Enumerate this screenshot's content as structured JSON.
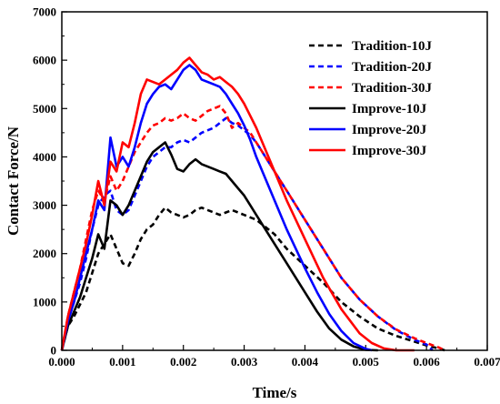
{
  "chart_data": {
    "type": "line",
    "xlabel": "Time/s",
    "ylabel": "Contact Force/N",
    "xlim": [
      0,
      0.007
    ],
    "ylim": [
      0,
      7000
    ],
    "xticks": [
      "0.000",
      "0.001",
      "0.002",
      "0.003",
      "0.004",
      "0.005",
      "0.006",
      "0.007"
    ],
    "yticks": [
      "0",
      "1000",
      "2000",
      "3000",
      "4000",
      "5000",
      "6000",
      "7000"
    ],
    "grid": false,
    "legend_position": "top-right",
    "series": [
      {
        "name": "Tradition-10J",
        "color": "#000000",
        "dash": "dashed",
        "points": [
          [
            0,
            0
          ],
          [
            0.0001,
            500
          ],
          [
            0.0002,
            700
          ],
          [
            0.0003,
            950
          ],
          [
            0.0004,
            1200
          ],
          [
            0.0005,
            1600
          ],
          [
            0.0006,
            2000
          ],
          [
            0.0007,
            2200
          ],
          [
            0.0008,
            2400
          ],
          [
            0.0009,
            2100
          ],
          [
            0.001,
            1800
          ],
          [
            0.0011,
            1750
          ],
          [
            0.0012,
            2000
          ],
          [
            0.0013,
            2300
          ],
          [
            0.0014,
            2500
          ],
          [
            0.0015,
            2600
          ],
          [
            0.0016,
            2800
          ],
          [
            0.0017,
            2950
          ],
          [
            0.0018,
            2850
          ],
          [
            0.0019,
            2800
          ],
          [
            0.002,
            2750
          ],
          [
            0.0021,
            2800
          ],
          [
            0.0022,
            2900
          ],
          [
            0.0023,
            2950
          ],
          [
            0.0024,
            2900
          ],
          [
            0.0025,
            2850
          ],
          [
            0.0026,
            2800
          ],
          [
            0.0027,
            2850
          ],
          [
            0.0028,
            2900
          ],
          [
            0.0029,
            2850
          ],
          [
            0.003,
            2800
          ],
          [
            0.0031,
            2750
          ],
          [
            0.0032,
            2700
          ],
          [
            0.0033,
            2600
          ],
          [
            0.0035,
            2400
          ],
          [
            0.0037,
            2100
          ],
          [
            0.004,
            1750
          ],
          [
            0.0043,
            1400
          ],
          [
            0.0046,
            1000
          ],
          [
            0.0049,
            700
          ],
          [
            0.0052,
            450
          ],
          [
            0.0055,
            300
          ],
          [
            0.0058,
            180
          ],
          [
            0.006,
            100
          ],
          [
            0.0062,
            40
          ],
          [
            0.0063,
            0
          ]
        ]
      },
      {
        "name": "Tradition-20J",
        "color": "#0000ff",
        "dash": "dashed",
        "points": [
          [
            0,
            0
          ],
          [
            0.0001,
            600
          ],
          [
            0.0002,
            1000
          ],
          [
            0.0003,
            1400
          ],
          [
            0.0004,
            1900
          ],
          [
            0.0005,
            2500
          ],
          [
            0.0006,
            3000
          ],
          [
            0.0007,
            3200
          ],
          [
            0.0008,
            3300
          ],
          [
            0.0009,
            2900
          ],
          [
            0.001,
            2800
          ],
          [
            0.0011,
            2900
          ],
          [
            0.0012,
            3200
          ],
          [
            0.0013,
            3500
          ],
          [
            0.0014,
            3800
          ],
          [
            0.0015,
            4000
          ],
          [
            0.0016,
            4100
          ],
          [
            0.0017,
            4200
          ],
          [
            0.0018,
            4200
          ],
          [
            0.0019,
            4300
          ],
          [
            0.002,
            4350
          ],
          [
            0.0021,
            4300
          ],
          [
            0.0022,
            4400
          ],
          [
            0.0023,
            4500
          ],
          [
            0.0024,
            4550
          ],
          [
            0.0025,
            4600
          ],
          [
            0.0026,
            4700
          ],
          [
            0.0027,
            4800
          ],
          [
            0.0028,
            4700
          ],
          [
            0.0029,
            4650
          ],
          [
            0.003,
            4550
          ],
          [
            0.0031,
            4450
          ],
          [
            0.0032,
            4300
          ],
          [
            0.0033,
            4100
          ],
          [
            0.0035,
            3700
          ],
          [
            0.0037,
            3300
          ],
          [
            0.004,
            2700
          ],
          [
            0.0043,
            2100
          ],
          [
            0.0046,
            1500
          ],
          [
            0.0049,
            1050
          ],
          [
            0.0052,
            700
          ],
          [
            0.0055,
            420
          ],
          [
            0.0058,
            220
          ],
          [
            0.006,
            120
          ],
          [
            0.0061,
            0
          ]
        ]
      },
      {
        "name": "Tradition-30J",
        "color": "#ff0000",
        "dash": "dashed",
        "points": [
          [
            0,
            0
          ],
          [
            0.0001,
            700
          ],
          [
            0.0002,
            1200
          ],
          [
            0.0003,
            1700
          ],
          [
            0.0004,
            2300
          ],
          [
            0.0005,
            2900
          ],
          [
            0.0006,
            3300
          ],
          [
            0.0007,
            3100
          ],
          [
            0.0008,
            3600
          ],
          [
            0.0009,
            3300
          ],
          [
            0.001,
            3500
          ],
          [
            0.0011,
            3800
          ],
          [
            0.0012,
            4100
          ],
          [
            0.0013,
            4300
          ],
          [
            0.0014,
            4500
          ],
          [
            0.0015,
            4650
          ],
          [
            0.0016,
            4700
          ],
          [
            0.0017,
            4800
          ],
          [
            0.0018,
            4750
          ],
          [
            0.0019,
            4800
          ],
          [
            0.002,
            4900
          ],
          [
            0.0021,
            4800
          ],
          [
            0.0022,
            4750
          ],
          [
            0.0023,
            4850
          ],
          [
            0.0024,
            4950
          ],
          [
            0.0025,
            5000
          ],
          [
            0.0026,
            5050
          ],
          [
            0.0027,
            4900
          ],
          [
            0.0028,
            4600
          ],
          [
            0.0029,
            4700
          ],
          [
            0.003,
            4600
          ],
          [
            0.0031,
            4500
          ],
          [
            0.0032,
            4300
          ],
          [
            0.0033,
            4100
          ],
          [
            0.0035,
            3700
          ],
          [
            0.0037,
            3300
          ],
          [
            0.004,
            2700
          ],
          [
            0.0043,
            2100
          ],
          [
            0.0046,
            1500
          ],
          [
            0.0049,
            1050
          ],
          [
            0.0052,
            700
          ],
          [
            0.0055,
            430
          ],
          [
            0.0058,
            250
          ],
          [
            0.006,
            150
          ],
          [
            0.0062,
            60
          ],
          [
            0.0063,
            0
          ]
        ]
      },
      {
        "name": "Improve-10J",
        "color": "#000000",
        "dash": "solid",
        "points": [
          [
            0,
            0
          ],
          [
            0.0001,
            500
          ],
          [
            0.0002,
            800
          ],
          [
            0.0003,
            1100
          ],
          [
            0.0004,
            1500
          ],
          [
            0.0005,
            1900
          ],
          [
            0.0006,
            2400
          ],
          [
            0.0007,
            2100
          ],
          [
            0.0008,
            3100
          ],
          [
            0.0009,
            3000
          ],
          [
            0.001,
            2800
          ],
          [
            0.0011,
            3000
          ],
          [
            0.0012,
            3300
          ],
          [
            0.0013,
            3600
          ],
          [
            0.0014,
            3900
          ],
          [
            0.0015,
            4100
          ],
          [
            0.0016,
            4200
          ],
          [
            0.0017,
            4300
          ],
          [
            0.0018,
            4050
          ],
          [
            0.0019,
            3750
          ],
          [
            0.002,
            3700
          ],
          [
            0.0021,
            3850
          ],
          [
            0.0022,
            3950
          ],
          [
            0.0023,
            3850
          ],
          [
            0.0024,
            3800
          ],
          [
            0.0025,
            3750
          ],
          [
            0.0026,
            3700
          ],
          [
            0.0027,
            3650
          ],
          [
            0.0028,
            3500
          ],
          [
            0.0029,
            3350
          ],
          [
            0.003,
            3200
          ],
          [
            0.0031,
            3000
          ],
          [
            0.0032,
            2800
          ],
          [
            0.0033,
            2600
          ],
          [
            0.0035,
            2200
          ],
          [
            0.0037,
            1800
          ],
          [
            0.004,
            1200
          ],
          [
            0.0042,
            800
          ],
          [
            0.0044,
            450
          ],
          [
            0.0046,
            220
          ],
          [
            0.0048,
            80
          ],
          [
            0.005,
            10
          ],
          [
            0.0052,
            0
          ]
        ]
      },
      {
        "name": "Improve-20J",
        "color": "#0000ff",
        "dash": "solid",
        "points": [
          [
            0,
            0
          ],
          [
            0.0001,
            600
          ],
          [
            0.0002,
            1000
          ],
          [
            0.0003,
            1500
          ],
          [
            0.0004,
            2000
          ],
          [
            0.0005,
            2500
          ],
          [
            0.0006,
            3100
          ],
          [
            0.0007,
            2900
          ],
          [
            0.0008,
            4400
          ],
          [
            0.0009,
            3800
          ],
          [
            0.001,
            4000
          ],
          [
            0.0011,
            3800
          ],
          [
            0.0012,
            4200
          ],
          [
            0.0013,
            4700
          ],
          [
            0.0014,
            5100
          ],
          [
            0.0015,
            5300
          ],
          [
            0.0016,
            5450
          ],
          [
            0.0017,
            5500
          ],
          [
            0.0018,
            5400
          ],
          [
            0.0019,
            5600
          ],
          [
            0.002,
            5800
          ],
          [
            0.0021,
            5900
          ],
          [
            0.0022,
            5800
          ],
          [
            0.0023,
            5600
          ],
          [
            0.0024,
            5550
          ],
          [
            0.0025,
            5500
          ],
          [
            0.0026,
            5450
          ],
          [
            0.0027,
            5300
          ],
          [
            0.0028,
            5100
          ],
          [
            0.0029,
            4900
          ],
          [
            0.003,
            4650
          ],
          [
            0.0031,
            4350
          ],
          [
            0.0032,
            4000
          ],
          [
            0.0033,
            3700
          ],
          [
            0.0035,
            3100
          ],
          [
            0.0037,
            2500
          ],
          [
            0.004,
            1700
          ],
          [
            0.0042,
            1200
          ],
          [
            0.0044,
            750
          ],
          [
            0.0046,
            400
          ],
          [
            0.0048,
            150
          ],
          [
            0.005,
            30
          ],
          [
            0.0051,
            0
          ]
        ]
      },
      {
        "name": "Improve-30J",
        "color": "#ff0000",
        "dash": "solid",
        "points": [
          [
            0,
            0
          ],
          [
            0.0001,
            700
          ],
          [
            0.0002,
            1200
          ],
          [
            0.0003,
            1700
          ],
          [
            0.0004,
            2200
          ],
          [
            0.0005,
            2800
          ],
          [
            0.0006,
            3500
          ],
          [
            0.0007,
            3000
          ],
          [
            0.0008,
            3900
          ],
          [
            0.0009,
            3700
          ],
          [
            0.001,
            4300
          ],
          [
            0.0011,
            4200
          ],
          [
            0.0012,
            4700
          ],
          [
            0.0013,
            5300
          ],
          [
            0.0014,
            5600
          ],
          [
            0.0015,
            5550
          ],
          [
            0.0016,
            5500
          ],
          [
            0.0017,
            5600
          ],
          [
            0.0018,
            5700
          ],
          [
            0.0019,
            5800
          ],
          [
            0.002,
            5950
          ],
          [
            0.0021,
            6050
          ],
          [
            0.0022,
            5900
          ],
          [
            0.0023,
            5750
          ],
          [
            0.0024,
            5700
          ],
          [
            0.0025,
            5600
          ],
          [
            0.0026,
            5650
          ],
          [
            0.0027,
            5550
          ],
          [
            0.0028,
            5450
          ],
          [
            0.0029,
            5300
          ],
          [
            0.003,
            5100
          ],
          [
            0.0031,
            4850
          ],
          [
            0.0032,
            4600
          ],
          [
            0.0033,
            4300
          ],
          [
            0.0035,
            3700
          ],
          [
            0.0037,
            3100
          ],
          [
            0.004,
            2300
          ],
          [
            0.0043,
            1500
          ],
          [
            0.0046,
            850
          ],
          [
            0.0049,
            350
          ],
          [
            0.0051,
            150
          ],
          [
            0.0053,
            40
          ],
          [
            0.0055,
            0
          ],
          [
            0.0058,
            0
          ]
        ]
      }
    ]
  }
}
